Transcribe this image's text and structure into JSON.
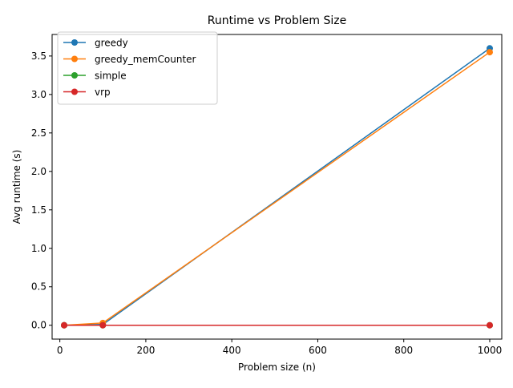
{
  "chart_data": {
    "type": "line",
    "title": "Runtime vs Problem Size",
    "xlabel": "Problem size (n)",
    "ylabel": "Avg runtime (s)",
    "xlim": [
      -18,
      1028
    ],
    "ylim": [
      -0.18,
      3.78
    ],
    "x_ticks": [
      0,
      200,
      400,
      600,
      800,
      1000
    ],
    "x_tick_labels": [
      "0",
      "200",
      "400",
      "600",
      "800",
      "1000"
    ],
    "y_ticks": [
      0.0,
      0.5,
      1.0,
      1.5,
      2.0,
      2.5,
      3.0,
      3.5
    ],
    "y_tick_labels": [
      "0.0",
      "0.5",
      "1.0",
      "1.5",
      "2.0",
      "2.5",
      "3.0",
      "3.5"
    ],
    "grid": false,
    "legend_position": "top-left",
    "x": [
      10,
      100,
      1000
    ],
    "series": [
      {
        "name": "greedy",
        "color": "#1f77b4",
        "values": [
          0.0,
          0.01,
          3.6
        ]
      },
      {
        "name": "greedy_memCounter",
        "color": "#ff7f0e",
        "values": [
          0.0,
          0.03,
          3.55
        ]
      },
      {
        "name": "simple",
        "color": "#2ca02c",
        "values": [
          0.0,
          0.0,
          0.0
        ]
      },
      {
        "name": "vrp",
        "color": "#d62728",
        "values": [
          0.0,
          0.0,
          0.0
        ]
      }
    ]
  }
}
